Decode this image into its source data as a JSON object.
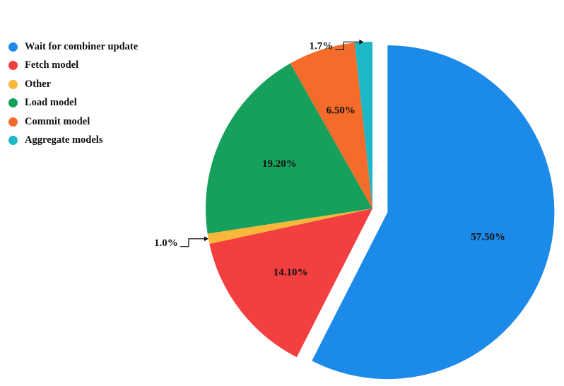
{
  "chart_data": {
    "type": "pie",
    "title": "",
    "start_angle": "top, clockwise",
    "exploded": [
      "Wait for combiner update"
    ],
    "legend_position": "top-left",
    "slices": [
      {
        "name": "Wait for combiner update",
        "value": 57.5,
        "label": "57.50%",
        "color": "#1b8ae8"
      },
      {
        "name": "Fetch model",
        "value": 14.1,
        "label": "14.10%",
        "color": "#f33f3f"
      },
      {
        "name": "Other",
        "value": 1.0,
        "label": "1.0%",
        "color": "#fbb73a",
        "callout": true
      },
      {
        "name": "Load model",
        "value": 19.2,
        "label": "19.20%",
        "color": "#16a05c"
      },
      {
        "name": "Commit model",
        "value": 6.5,
        "label": "6.50%",
        "color": "#f46b2a"
      },
      {
        "name": "Aggregate models",
        "value": 1.7,
        "label": "1.7%",
        "color": "#1cb8c6",
        "callout": true
      }
    ]
  }
}
